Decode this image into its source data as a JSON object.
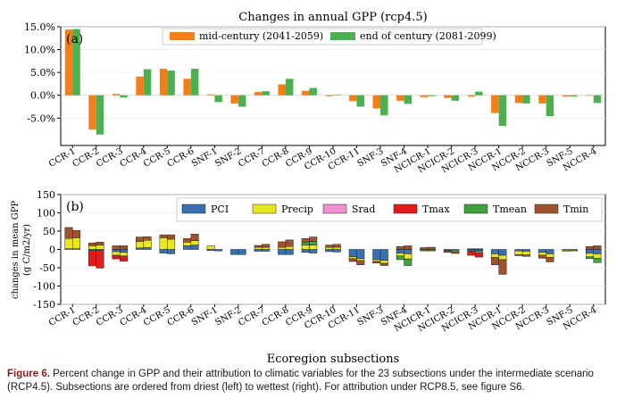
{
  "chart_data": [
    {
      "type": "bar",
      "panel_label": "(a)",
      "title": "Changes in annual GPP (rcp4.5)",
      "xlabel": "",
      "ylabel": "",
      "ylim": [
        -11,
        15
      ],
      "yticks": [
        "15.0%",
        "10.0%",
        "5.0%",
        "0.0%",
        "-5.0%"
      ],
      "yticks_values": [
        15,
        10,
        5,
        0,
        -5
      ],
      "legend_position": "top-center",
      "categories": [
        "CCR-1",
        "CCR-2",
        "CCR-3",
        "CCR-4",
        "CCR-5",
        "CCR-6",
        "SNF-1",
        "SNF-2",
        "CCR-7",
        "CCR-8",
        "CCR-9",
        "CCR-10",
        "CCR-11",
        "SNF-3",
        "SNF-4",
        "NCICR-1",
        "NCICR-2",
        "NCICR-3",
        "NCCR-1",
        "NCCR-2",
        "NCCR-3",
        "SNF-5",
        "NCCR-4"
      ],
      "series": [
        {
          "name": "mid-century (2041-2059)",
          "color": "#f47f18",
          "values": [
            14.4,
            -7.5,
            0.3,
            4.1,
            5.8,
            3.6,
            0.2,
            -1.8,
            0.7,
            2.4,
            1.0,
            -0.2,
            -1.3,
            -2.9,
            -1.2,
            -0.4,
            -0.6,
            -0.3,
            -3.9,
            -1.7,
            -1.8,
            -0.3,
            0.0
          ]
        },
        {
          "name": "end of century (2081-2099)",
          "color": "#4caf50",
          "values": [
            14.5,
            -8.6,
            -0.5,
            5.7,
            5.4,
            5.8,
            -1.5,
            -2.5,
            0.9,
            3.6,
            1.6,
            0.1,
            -2.5,
            -4.4,
            -1.9,
            -0.2,
            -1.2,
            0.8,
            -6.7,
            -1.8,
            -4.6,
            -0.3,
            -1.7
          ]
        }
      ]
    },
    {
      "type": "bar",
      "stacked": true,
      "panel_label": "(b)",
      "title": "",
      "xlabel": "Ecoregion subsections",
      "ylabel": "changes in mean GPP\n(g C/m2/yr)",
      "ylim": [
        -150,
        150
      ],
      "yticks_values": [
        150,
        100,
        50,
        0,
        -50,
        -100,
        -150
      ],
      "legend_position": "top-right",
      "categories": [
        "CCR-1",
        "CCR-2",
        "CCR-3",
        "CCR-4",
        "CCR-5",
        "CCR-6",
        "SNF-1",
        "SNF-2",
        "CCR-7",
        "CCR-8",
        "CCR-9",
        "CCR-10",
        "CCR-11",
        "SNF-3",
        "SNF-4",
        "NCICR-1",
        "NCICR-2",
        "NCICR-3",
        "NCCR-1",
        "NCCR-2",
        "NCCR-3",
        "SNF-5",
        "NCCR-4"
      ],
      "series": [
        {
          "name": "PCI",
          "color": "#3a6fb0",
          "mid": [
            2,
            -3,
            -6,
            4,
            -10,
            10,
            -3,
            -14,
            -5,
            -14,
            -8,
            -6,
            -20,
            -28,
            -10,
            -2,
            -3,
            -4,
            -12,
            -4,
            -8,
            -2,
            -10
          ],
          "end": [
            2,
            -3,
            -8,
            5,
            -12,
            12,
            -4,
            -14,
            -5,
            -14,
            -10,
            -7,
            -25,
            -30,
            -12,
            -2,
            -4,
            -6,
            -16,
            -5,
            -12,
            -2,
            -12
          ]
        },
        {
          "name": "Precip",
          "color": "#e8e820",
          "mid": [
            28,
            10,
            -10,
            18,
            32,
            10,
            10,
            0,
            6,
            6,
            12,
            6,
            -5,
            -5,
            -8,
            -2,
            -2,
            -2,
            -10,
            -10,
            -8,
            -3,
            -10
          ],
          "end": [
            30,
            12,
            -10,
            20,
            28,
            12,
            0,
            0,
            6,
            8,
            12,
            6,
            -5,
            -8,
            -14,
            -2,
            -3,
            -3,
            -12,
            -10,
            -10,
            -2,
            -12
          ]
        },
        {
          "name": "Srad",
          "color": "#f48fd0",
          "mid": [
            0,
            0,
            0,
            0,
            0,
            0,
            0,
            0,
            0,
            0,
            0,
            0,
            0,
            0,
            0,
            0,
            0,
            0,
            0,
            0,
            0,
            0,
            0
          ],
          "end": [
            0,
            0,
            0,
            0,
            0,
            0,
            0,
            0,
            0,
            0,
            0,
            0,
            0,
            0,
            0,
            0,
            0,
            0,
            0,
            0,
            0,
            0,
            0
          ]
        },
        {
          "name": "Tmax",
          "color": "#e41a1c",
          "mid": [
            0,
            -42,
            -10,
            0,
            0,
            0,
            0,
            0,
            0,
            0,
            0,
            0,
            0,
            0,
            0,
            0,
            0,
            -10,
            0,
            0,
            0,
            0,
            0
          ],
          "end": [
            0,
            -48,
            -14,
            0,
            0,
            0,
            0,
            0,
            0,
            0,
            0,
            0,
            0,
            0,
            0,
            0,
            0,
            -12,
            0,
            0,
            0,
            0,
            0
          ]
        },
        {
          "name": "Tmean",
          "color": "#3fa33f",
          "mid": [
            0,
            0,
            0,
            0,
            0,
            0,
            0,
            0,
            0,
            0,
            8,
            0,
            0,
            0,
            -10,
            0,
            0,
            0,
            0,
            0,
            0,
            0,
            -5
          ],
          "end": [
            0,
            0,
            0,
            0,
            0,
            0,
            0,
            0,
            0,
            0,
            10,
            0,
            0,
            0,
            -18,
            0,
            0,
            0,
            0,
            0,
            0,
            0,
            -12
          ]
        },
        {
          "name": "Tmin",
          "color": "#a0522d",
          "mid": [
            30,
            8,
            10,
            12,
            8,
            10,
            0,
            0,
            5,
            15,
            10,
            6,
            -8,
            -4,
            8,
            5,
            -3,
            2,
            -20,
            -3,
            -8,
            0,
            8
          ],
          "end": [
            20,
            8,
            10,
            10,
            12,
            18,
            0,
            0,
            8,
            18,
            12,
            8,
            -12,
            -6,
            10,
            6,
            -4,
            2,
            -40,
            -4,
            -12,
            0,
            10
          ]
        }
      ]
    }
  ],
  "caption": {
    "label": "Figure 6.",
    "text": " Percent change in GPP and their attribution to climatic variables for the 23 subsections under the intermediate scenario (RCP4.5). Subsections are ordered from driest (left) to wettest (right). For attribution under RCP8.5, see figure S6."
  }
}
